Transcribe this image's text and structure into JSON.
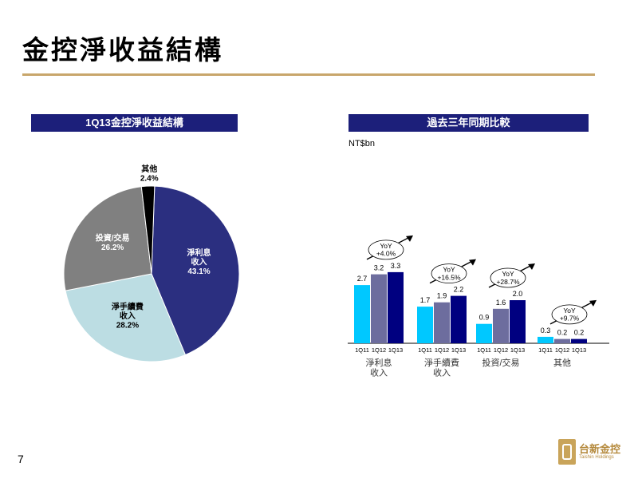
{
  "page": {
    "title": "金控淨收益結構",
    "number": "7"
  },
  "left_panel": {
    "header": "1Q13金控淨收益結構"
  },
  "right_panel": {
    "header": "過去三年同期比較",
    "unit": "NT$bn"
  },
  "logo": {
    "cn": "台新金控",
    "en": "Taishin Holdings"
  },
  "colors": {
    "header_bg": "#1c1f7a",
    "rule": "#c8a66b",
    "s1": "#00c8ff",
    "s2": "#6d6d9e",
    "s3": "#000080"
  },
  "chart_data": [
    {
      "type": "pie",
      "title": "1Q13金控淨收益結構",
      "slices": [
        {
          "label": [
            "淨利息",
            "收入"
          ],
          "pct_label": "43.1%",
          "value": 43.1,
          "color": "#2b2f80",
          "text_color": "#ffffff"
        },
        {
          "label": [
            "淨手續費",
            "收入"
          ],
          "pct_label": "28.2%",
          "value": 28.2,
          "color": "#bcdde3",
          "text_color": "#000000"
        },
        {
          "label": [
            "投資/交易"
          ],
          "pct_label": "26.2%",
          "value": 26.2,
          "color": "#808080",
          "text_color": "#ffffff"
        },
        {
          "label": [
            "其他"
          ],
          "pct_label": "2.4%",
          "value": 2.4,
          "color": "#000000",
          "text_color": "#000000"
        }
      ]
    },
    {
      "type": "bar",
      "title": "過去三年同期比較",
      "ylabel": "NT$bn",
      "series_labels": [
        "1Q11",
        "1Q12",
        "1Q13"
      ],
      "groups": [
        {
          "label": [
            "淨利息",
            "收入"
          ],
          "values": [
            2.7,
            3.2,
            3.3
          ],
          "value_labels": [
            "2.7",
            "3.2",
            "3.3"
          ],
          "yoy": [
            "YoY",
            "+4.0%"
          ]
        },
        {
          "label": [
            "淨手續費",
            "收入"
          ],
          "values": [
            1.7,
            1.9,
            2.2
          ],
          "value_labels": [
            "1.7",
            "1.9",
            "2.2"
          ],
          "yoy": [
            "YoY",
            "+16.5%"
          ]
        },
        {
          "label": [
            "投資/交易"
          ],
          "values": [
            0.9,
            1.6,
            2.0
          ],
          "value_labels": [
            "0.9",
            "1.6",
            "2.0"
          ],
          "yoy": [
            "YoY",
            "+28.7%"
          ]
        },
        {
          "label": [
            "其他"
          ],
          "values": [
            0.3,
            0.2,
            0.2
          ],
          "value_labels": [
            "0.3",
            "0.2",
            "0.2"
          ],
          "yoy": [
            "YoY",
            "+9.7%"
          ]
        }
      ],
      "ylim": [
        0,
        3.5
      ]
    }
  ]
}
